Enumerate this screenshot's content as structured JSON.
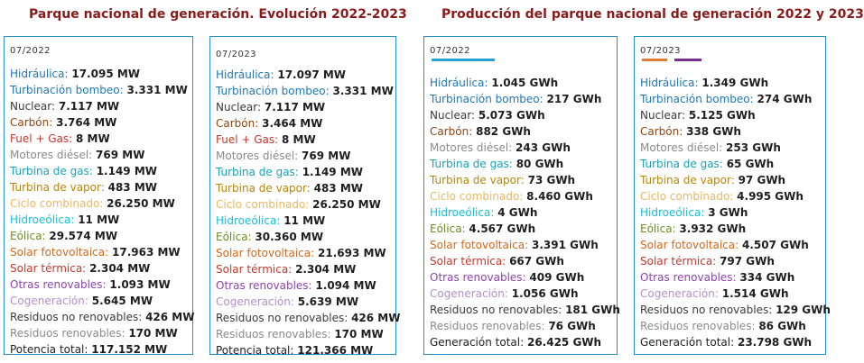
{
  "titles": {
    "left": "Parque nacional de generación. Evolución 2022-2023",
    "right": "Producción del parque nacional de generación 2022 y 2023"
  },
  "colors": {
    "border": "#2a8fc7",
    "bar_2022": "#2a9fd6",
    "bar_2023_a": "#e07b39",
    "bar_2023_b": "#7b2d90",
    "label_colors": [
      "#1f77b4",
      "#1f77b4",
      "#3a3a3a",
      "#8b4513",
      "#c0392b",
      "#8a8a8a",
      "#17a2b8",
      "#b8860b",
      "#e8b864",
      "#17c0d6",
      "#6b8e23",
      "#d2691e",
      "#c0392b",
      "#8e44ad",
      "#b48fc8",
      "#3a3a3a",
      "#8a8a8a",
      "#1e1e1e"
    ]
  },
  "cards": [
    {
      "period": "07/2022",
      "rows": [
        {
          "label": "Hidráulica:",
          "value": "17.095 MW"
        },
        {
          "label": "Turbinación bombeo:",
          "value": "3.331 MW"
        },
        {
          "label": "Nuclear:",
          "value": "7.117 MW"
        },
        {
          "label": "Carbón:",
          "value": "3.764 MW"
        },
        {
          "label": "Fuel + Gas:",
          "value": "8 MW"
        },
        {
          "label": "Motores diésel:",
          "value": "769 MW"
        },
        {
          "label": "Turbina de gas:",
          "value": "1.149 MW"
        },
        {
          "label": "Turbina de vapor:",
          "value": "483 MW"
        },
        {
          "label": "Ciclo combinado:",
          "value": "26.250 MW"
        },
        {
          "label": "Hidroeólica:",
          "value": "11 MW"
        },
        {
          "label": "Eólica:",
          "value": "29.574 MW"
        },
        {
          "label": "Solar fotovoltaica:",
          "value": "17.963 MW"
        },
        {
          "label": "Solar térmica:",
          "value": "2.304 MW"
        },
        {
          "label": "Otras renovables:",
          "value": "1.093 MW"
        },
        {
          "label": "Cogeneración:",
          "value": "5.645 MW"
        },
        {
          "label": "Residuos no renovables:",
          "value": "426 MW"
        },
        {
          "label": "Residuos renovables:",
          "value": "170 MW"
        },
        {
          "label": "Potencia total:",
          "value": "117.152 MW"
        }
      ]
    },
    {
      "period": "07/2023",
      "rows": [
        {
          "label": "Hidráulica:",
          "value": "17.097 MW"
        },
        {
          "label": "Turbinación bombeo:",
          "value": "3.331 MW"
        },
        {
          "label": "Nuclear:",
          "value": "7.117 MW"
        },
        {
          "label": "Carbón:",
          "value": "3.464 MW"
        },
        {
          "label": "Fuel + Gas:",
          "value": "8 MW"
        },
        {
          "label": "Motores diésel:",
          "value": "769 MW"
        },
        {
          "label": "Turbina de gas:",
          "value": "1.149 MW"
        },
        {
          "label": "Turbina de vapor:",
          "value": "483 MW"
        },
        {
          "label": "Ciclo combinado:",
          "value": "26.250 MW"
        },
        {
          "label": "Hidroeólica:",
          "value": "11 MW"
        },
        {
          "label": "Eólica:",
          "value": "30.360 MW"
        },
        {
          "label": "Solar fotovoltaica:",
          "value": "21.693 MW"
        },
        {
          "label": "Solar térmica:",
          "value": "2.304 MW"
        },
        {
          "label": "Otras renovables:",
          "value": "1.094 MW"
        },
        {
          "label": "Cogeneración:",
          "value": "5.639 MW"
        },
        {
          "label": "Residuos no renovables:",
          "value": "426 MW"
        },
        {
          "label": "Residuos renovables:",
          "value": "170 MW"
        },
        {
          "label": "Potencia total:",
          "value": "121.366 MW"
        }
      ]
    },
    {
      "period": "07/2022",
      "rows": [
        {
          "label": "Hidráulica:",
          "value": "1.045 GWh"
        },
        {
          "label": "Turbinación bombeo:",
          "value": "217 GWh"
        },
        {
          "label": "Nuclear:",
          "value": "5.073 GWh"
        },
        {
          "label": "Carbón:",
          "value": "882 GWh"
        },
        {
          "label": "Motores diésel:",
          "value": "243 GWh"
        },
        {
          "label": "Turbina de gas:",
          "value": "80 GWh"
        },
        {
          "label": "Turbina de vapor:",
          "value": "73 GWh"
        },
        {
          "label": "Ciclo combinado:",
          "value": "8.460 GWh"
        },
        {
          "label": "Hidroeólica:",
          "value": "4 GWh"
        },
        {
          "label": "Eólica:",
          "value": "4.567 GWh"
        },
        {
          "label": "Solar fotovoltaica:",
          "value": "3.391 GWh"
        },
        {
          "label": "Solar térmica:",
          "value": "667 GWh"
        },
        {
          "label": "Otras renovables:",
          "value": "409 GWh"
        },
        {
          "label": "Cogeneración:",
          "value": "1.056 GWh"
        },
        {
          "label": "Residuos no renovables:",
          "value": "181 GWh"
        },
        {
          "label": "Residuos renovables:",
          "value": "76 GWh"
        },
        {
          "label": "Generación total:",
          "value": "26.425 GWh"
        }
      ]
    },
    {
      "period": "07/2023",
      "rows": [
        {
          "label": "Hidráulica:",
          "value": "1.349 GWh"
        },
        {
          "label": "Turbinación bombeo:",
          "value": "274 GWh"
        },
        {
          "label": "Nuclear:",
          "value": "5.125 GWh"
        },
        {
          "label": "Carbón:",
          "value": "338 GWh"
        },
        {
          "label": "Motores diésel:",
          "value": "253 GWh"
        },
        {
          "label": "Turbina de gas:",
          "value": "65 GWh"
        },
        {
          "label": "Turbina de vapor:",
          "value": "97 GWh"
        },
        {
          "label": "Ciclo combinado:",
          "value": "4.995 GWh"
        },
        {
          "label": "Hidroeólica:",
          "value": "3 GWh"
        },
        {
          "label": "Eólica:",
          "value": "3.932 GWh"
        },
        {
          "label": "Solar fotovoltaica:",
          "value": "4.507 GWh"
        },
        {
          "label": "Solar térmica:",
          "value": "797 GWh"
        },
        {
          "label": "Otras renovables:",
          "value": "334 GWh"
        },
        {
          "label": "Cogeneración:",
          "value": "1.514 GWh"
        },
        {
          "label": "Residuos no renovables:",
          "value": "129 GWh"
        },
        {
          "label": "Residuos renovables:",
          "value": "86 GWh"
        },
        {
          "label": "Generación total:",
          "value": "23.798 GWh"
        }
      ]
    }
  ]
}
